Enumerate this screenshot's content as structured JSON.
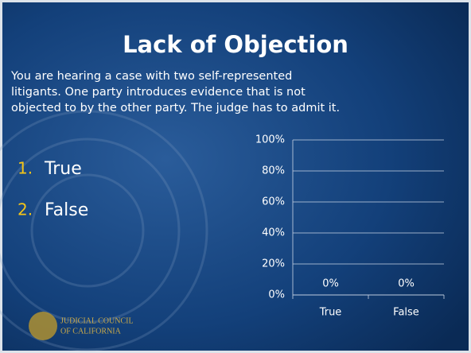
{
  "slide": {
    "title": "Lack of Objection",
    "body": [
      "You are hearing a case with two self-represented",
      "litigants.  One party introduces evidence that is not",
      "objected to by the other party.  The judge has to admit it."
    ],
    "list": [
      {
        "number": "1.",
        "text": "True"
      },
      {
        "number": "2.",
        "text": "False"
      }
    ],
    "footer": [
      "JUDICIAL COUNCIL",
      "OF CALIFORNIA"
    ]
  },
  "chart_data": {
    "type": "bar",
    "categories": [
      "True",
      "False"
    ],
    "values": [
      0,
      0
    ],
    "value_labels": [
      "0%",
      "0%"
    ],
    "color": "#4f81bd",
    "ylim": [
      0,
      100
    ],
    "yticks": [
      {
        "value": 0,
        "label": "0%"
      },
      {
        "value": 20,
        "label": "20%"
      },
      {
        "value": 40,
        "label": "40%"
      },
      {
        "value": 60,
        "label": "60%"
      },
      {
        "value": 80,
        "label": "80%"
      },
      {
        "value": 100,
        "label": "100%"
      }
    ],
    "grid": true
  }
}
